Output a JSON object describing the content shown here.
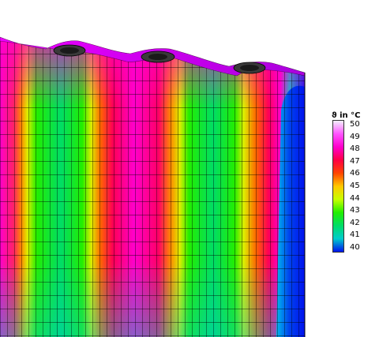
{
  "legend": {
    "title": "ϑ in °C",
    "ticks": [
      "50",
      "49",
      "48",
      "47",
      "46",
      "45",
      "44",
      "43",
      "42",
      "41",
      "40"
    ],
    "colors": [
      "#f2f0fc",
      "#ff55ff",
      "#ff00cc",
      "#ff0044",
      "#ff4400",
      "#ffc800",
      "#c8ff00",
      "#22ee00",
      "#00dd66",
      "#00cccc",
      "#0011ee"
    ]
  }
}
